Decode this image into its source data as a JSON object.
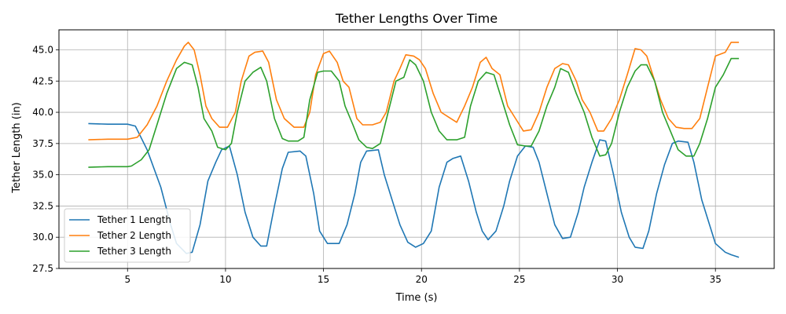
{
  "chart_data": {
    "type": "line",
    "title": "Tether Lengths Over Time",
    "xlabel": "Time (s)",
    "ylabel": "Tether Length (in)",
    "xlim": [
      1.5,
      38
    ],
    "ylim": [
      27.5,
      46.6
    ],
    "xticks": [
      5,
      10,
      15,
      20,
      25,
      30,
      35
    ],
    "yticks": [
      27.5,
      30.0,
      32.5,
      35.0,
      37.5,
      40.0,
      42.5,
      45.0
    ],
    "ytick_labels": [
      "27.5",
      "30.0",
      "32.5",
      "35.0",
      "37.5",
      "40.0",
      "42.5",
      "45.0"
    ],
    "grid": true,
    "legend_position": "lower-left",
    "series": [
      {
        "name": "Tether 1 Length",
        "color": "#1f77b4",
        "x": [
          3.0,
          4.0,
          5.0,
          5.4,
          6.0,
          6.7,
          7.2,
          7.5,
          8.0,
          8.3,
          8.7,
          9.1,
          9.5,
          9.8,
          10.2,
          10.6,
          11.0,
          11.4,
          11.8,
          12.1,
          12.5,
          12.9,
          13.2,
          13.8,
          14.1,
          14.5,
          14.8,
          15.2,
          15.8,
          16.2,
          16.6,
          16.9,
          17.2,
          17.8,
          18.1,
          18.5,
          18.9,
          19.3,
          19.7,
          20.1,
          20.5,
          20.9,
          21.3,
          21.6,
          22.0,
          22.4,
          22.8,
          23.1,
          23.4,
          23.8,
          24.2,
          24.5,
          24.9,
          25.3,
          25.7,
          26.0,
          26.4,
          26.8,
          27.2,
          27.6,
          28.0,
          28.3,
          28.7,
          29.1,
          29.4,
          29.8,
          30.2,
          30.6,
          30.9,
          31.3,
          31.6,
          32.0,
          32.4,
          32.8,
          33.1,
          33.6,
          33.9,
          34.3,
          34.7,
          35.0,
          35.5,
          35.8,
          36.2
        ],
        "y": [
          39.1,
          39.05,
          39.05,
          38.9,
          37.0,
          34.0,
          31.0,
          29.5,
          28.7,
          28.8,
          31.0,
          34.5,
          36.0,
          37.0,
          37.3,
          35.0,
          32.0,
          30.0,
          29.3,
          29.3,
          32.5,
          35.5,
          36.8,
          36.9,
          36.5,
          33.5,
          30.5,
          29.5,
          29.5,
          31.0,
          33.5,
          36.0,
          36.9,
          37.0,
          35.0,
          33.0,
          31.0,
          29.6,
          29.2,
          29.5,
          30.5,
          34.0,
          36.0,
          36.3,
          36.5,
          34.5,
          32.0,
          30.5,
          29.8,
          30.5,
          32.5,
          34.5,
          36.5,
          37.3,
          37.2,
          36.0,
          33.5,
          31.0,
          29.9,
          30.0,
          32.0,
          34.0,
          36.0,
          37.8,
          37.7,
          35.0,
          32.0,
          30.0,
          29.2,
          29.1,
          30.5,
          33.5,
          35.8,
          37.5,
          37.7,
          37.6,
          36.0,
          33.0,
          31.0,
          29.5,
          28.8,
          28.6,
          28.4
        ]
      },
      {
        "name": "Tether 2 Length",
        "color": "#ff7f0e",
        "x": [
          3.0,
          4.0,
          5.0,
          5.5,
          6.0,
          6.5,
          7.0,
          7.5,
          7.9,
          8.1,
          8.4,
          8.7,
          9.0,
          9.3,
          9.7,
          10.1,
          10.5,
          10.8,
          11.2,
          11.5,
          11.9,
          12.2,
          12.6,
          13.0,
          13.5,
          14.0,
          14.3,
          14.6,
          15.0,
          15.3,
          15.7,
          16.0,
          16.3,
          16.7,
          17.0,
          17.5,
          17.9,
          18.2,
          18.6,
          18.9,
          19.2,
          19.6,
          19.9,
          20.2,
          20.6,
          21.0,
          21.4,
          21.8,
          22.2,
          22.6,
          23.0,
          23.3,
          23.6,
          24.0,
          24.4,
          24.8,
          25.2,
          25.6,
          26.0,
          26.4,
          26.8,
          27.2,
          27.5,
          27.9,
          28.2,
          28.6,
          29.0,
          29.3,
          29.7,
          30.1,
          30.5,
          30.9,
          31.2,
          31.5,
          31.8,
          32.2,
          32.6,
          33.0,
          33.4,
          33.8,
          34.2,
          34.6,
          35.0,
          35.5,
          35.8,
          36.2
        ],
        "y": [
          37.8,
          37.85,
          37.85,
          38.0,
          39.0,
          40.5,
          42.5,
          44.2,
          45.3,
          45.6,
          45.0,
          43.0,
          40.5,
          39.5,
          38.8,
          38.8,
          40.0,
          42.5,
          44.5,
          44.8,
          44.9,
          44.0,
          41.0,
          39.5,
          38.8,
          38.8,
          40.0,
          43.0,
          44.7,
          44.9,
          44.0,
          42.5,
          42.0,
          39.5,
          39.0,
          39.0,
          39.2,
          40.0,
          42.5,
          43.5,
          44.6,
          44.5,
          44.2,
          43.5,
          41.5,
          40.0,
          39.6,
          39.2,
          40.5,
          42.0,
          44.0,
          44.4,
          43.5,
          43.0,
          40.5,
          39.5,
          38.5,
          38.6,
          40.0,
          42.0,
          43.5,
          43.9,
          43.8,
          42.5,
          41.0,
          40.0,
          38.5,
          38.5,
          39.5,
          41.0,
          43.0,
          45.1,
          45.0,
          44.5,
          43.0,
          41.0,
          39.5,
          38.8,
          38.7,
          38.7,
          39.5,
          42.0,
          44.5,
          44.8,
          45.6,
          45.6
        ]
      },
      {
        "name": "Tether 3 Length",
        "color": "#2ca02c",
        "x": [
          3.0,
          4.0,
          5.0,
          5.2,
          5.7,
          6.1,
          6.5,
          7.0,
          7.5,
          7.9,
          8.3,
          8.6,
          8.9,
          9.3,
          9.6,
          10.0,
          10.3,
          10.6,
          11.0,
          11.4,
          11.8,
          12.1,
          12.5,
          12.9,
          13.2,
          13.7,
          14.0,
          14.3,
          14.7,
          15.0,
          15.4,
          15.8,
          16.1,
          16.5,
          16.8,
          17.2,
          17.5,
          17.9,
          18.3,
          18.7,
          19.1,
          19.4,
          19.7,
          20.1,
          20.5,
          20.9,
          21.3,
          21.8,
          22.2,
          22.5,
          22.9,
          23.3,
          23.7,
          24.1,
          24.5,
          24.9,
          25.3,
          25.6,
          26.0,
          26.4,
          26.8,
          27.1,
          27.5,
          27.9,
          28.3,
          28.7,
          29.1,
          29.4,
          29.7,
          30.1,
          30.5,
          30.9,
          31.2,
          31.5,
          31.9,
          32.3,
          32.7,
          33.1,
          33.5,
          33.9,
          34.2,
          34.6,
          35.0,
          35.4,
          35.8,
          36.2
        ],
        "y": [
          35.6,
          35.65,
          35.65,
          35.7,
          36.2,
          37.0,
          39.0,
          41.5,
          43.5,
          44.0,
          43.8,
          42.0,
          39.5,
          38.5,
          37.2,
          37.0,
          37.5,
          40.0,
          42.5,
          43.2,
          43.6,
          42.5,
          39.5,
          37.9,
          37.7,
          37.7,
          38.0,
          41.0,
          43.2,
          43.3,
          43.3,
          42.5,
          40.5,
          39.0,
          37.8,
          37.2,
          37.1,
          37.5,
          40.0,
          42.5,
          42.8,
          44.2,
          43.8,
          42.5,
          40.0,
          38.5,
          37.8,
          37.8,
          38.0,
          40.5,
          42.5,
          43.2,
          43.0,
          41.0,
          39.0,
          37.4,
          37.3,
          37.3,
          38.5,
          40.5,
          42.0,
          43.5,
          43.2,
          41.5,
          40.0,
          38.0,
          36.5,
          36.6,
          37.5,
          40.0,
          42.0,
          43.3,
          43.8,
          43.8,
          42.5,
          40.0,
          38.5,
          37.0,
          36.5,
          36.5,
          37.5,
          39.5,
          42.0,
          43.0,
          44.3,
          44.3
        ]
      }
    ]
  }
}
